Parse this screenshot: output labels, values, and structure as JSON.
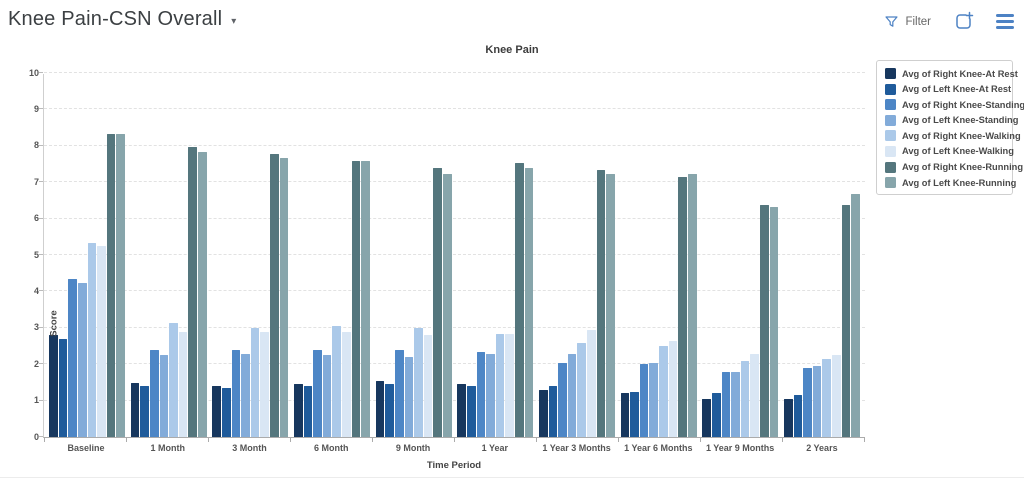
{
  "header": {
    "title": "Knee Pain-CSN Overall",
    "dropdown_caret": "▾",
    "filter_label": "Filter",
    "accent_blue": "#4d82c4"
  },
  "chart_data": {
    "type": "bar",
    "title": "Knee Pain",
    "xlabel": "Time Period",
    "ylabel": "Score",
    "ylim": [
      0,
      10
    ],
    "yticks": [
      0,
      1,
      2,
      3,
      4,
      5,
      6,
      7,
      8,
      9,
      10
    ],
    "grid": "horizontal-dashed",
    "legend_position": "top-right",
    "categories": [
      "Baseline",
      "1 Month",
      "3 Month",
      "6 Month",
      "9 Month",
      "1 Year",
      "1 Year 3 Months",
      "1 Year 6 Months",
      "1 Year 9 Months",
      "2 Years"
    ],
    "series": [
      {
        "name": "Avg of Right Knee-At Rest",
        "color": "#17375e",
        "values": [
          2.8,
          1.5,
          1.4,
          1.45,
          1.55,
          1.45,
          1.3,
          1.2,
          1.05,
          1.05
        ]
      },
      {
        "name": "Avg of Left Knee-At Rest",
        "color": "#1f5b9b",
        "values": [
          2.7,
          1.4,
          1.35,
          1.4,
          1.45,
          1.4,
          1.4,
          1.25,
          1.2,
          1.15
        ]
      },
      {
        "name": "Avg of Right Knee-Standing",
        "color": "#4d86c6",
        "values": [
          4.35,
          2.4,
          2.4,
          2.4,
          2.4,
          2.35,
          2.05,
          2.0,
          1.8,
          1.9
        ]
      },
      {
        "name": "Avg of Left Knee-Standing",
        "color": "#82abd9",
        "values": [
          4.25,
          2.25,
          2.3,
          2.25,
          2.2,
          2.3,
          2.3,
          2.05,
          1.8,
          1.95
        ]
      },
      {
        "name": "Avg of Right Knee-Walking",
        "color": "#abc9e9",
        "values": [
          5.35,
          3.15,
          3.0,
          3.05,
          3.0,
          2.85,
          2.6,
          2.5,
          2.1,
          2.15
        ]
      },
      {
        "name": "Avg of Left Knee-Walking",
        "color": "#d9e6f4",
        "values": [
          5.25,
          2.9,
          2.9,
          2.9,
          2.8,
          2.85,
          2.95,
          2.65,
          2.3,
          2.25
        ]
      },
      {
        "name": "Avg of Right Knee-Running",
        "color": "#54767d",
        "values": [
          8.35,
          8.0,
          7.8,
          7.6,
          7.4,
          7.55,
          7.35,
          7.15,
          6.4,
          6.4
        ]
      },
      {
        "name": "Avg of Left Knee-Running",
        "color": "#87a5ab",
        "values": [
          8.35,
          7.85,
          7.7,
          7.6,
          7.25,
          7.4,
          7.25,
          7.25,
          6.35,
          6.7
        ]
      }
    ]
  }
}
